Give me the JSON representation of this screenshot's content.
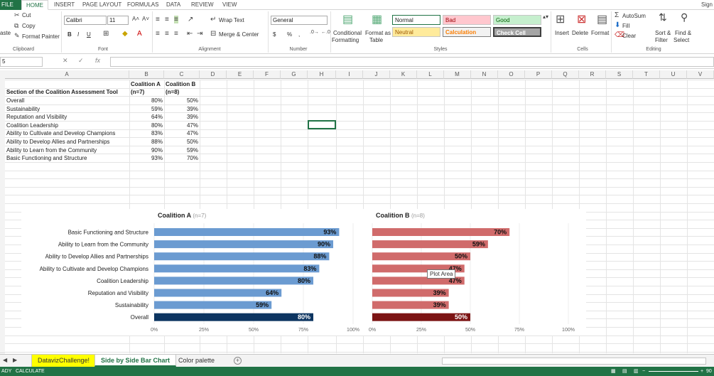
{
  "ribbon_tabs": [
    "FILE",
    "HOME",
    "INSERT",
    "PAGE LAYOUT",
    "FORMULAS",
    "DATA",
    "REVIEW",
    "VIEW"
  ],
  "sign_in": "Sign",
  "clipboard": {
    "cut": "Cut",
    "copy": "Copy",
    "paste": "aste",
    "format_painter": "Format Painter",
    "label": "Clipboard"
  },
  "font": {
    "name": "Calibri",
    "size": "11",
    "bold": "B",
    "italic": "I",
    "underline": "U",
    "label": "Font"
  },
  "alignment": {
    "wrap_text": "Wrap Text",
    "merge_center": "Merge & Center",
    "label": "Alignment"
  },
  "number": {
    "format": "General",
    "label": "Number",
    "currency": "$",
    "percent": "%",
    "comma": ","
  },
  "styles": {
    "conditional": "Conditional",
    "formatting": "Formatting",
    "format_as": "Format as",
    "table": "Table",
    "normal": "Normal",
    "bad": "Bad",
    "good": "Good",
    "neutral": "Neutral",
    "calculation": "Calculation",
    "check_cell": "Check Cell",
    "label": "Styles"
  },
  "cells": {
    "insert": "Insert",
    "delete": "Delete",
    "format": "Format",
    "label": "Cells"
  },
  "editing": {
    "autosum": "AutoSum",
    "fill": "Fill",
    "clear": "Clear",
    "sort": "Sort &",
    "filter": "Filter",
    "find": "Find &",
    "select": "Select",
    "label": "Editing"
  },
  "formula_bar": {
    "name_box": "5",
    "fx": "fx",
    "cancel": "✕",
    "enter": "✓"
  },
  "columns": [
    "A",
    "B",
    "C",
    "D",
    "E",
    "F",
    "G",
    "H",
    "I",
    "J",
    "K",
    "L",
    "M",
    "N",
    "O",
    "P",
    "Q",
    "R",
    "S",
    "T",
    "U",
    "V"
  ],
  "table": {
    "header_b1": "Coalition A",
    "header_b2": "(n=7)",
    "header_c1": "Coalition B",
    "header_c2": "(n=8)",
    "header_a": "Section of the Coalition Assessment Tool",
    "rows": [
      {
        "label": "Overall",
        "a": "80%",
        "b": "50%"
      },
      {
        "label": "Sustainability",
        "a": "59%",
        "b": "39%"
      },
      {
        "label": "Reputation and Visibility",
        "a": "64%",
        "b": "39%"
      },
      {
        "label": "Coalition Leadership",
        "a": "80%",
        "b": "47%"
      },
      {
        "label": "Ability to Cultivate and Develop Champions",
        "a": "83%",
        "b": "47%"
      },
      {
        "label": "Ability to Develop Allies and Partnerships",
        "a": "88%",
        "b": "50%"
      },
      {
        "label": "Ability to Learn from the Community",
        "a": "90%",
        "b": "59%"
      },
      {
        "label": "Basic Functioning and Structure",
        "a": "93%",
        "b": "70%"
      }
    ]
  },
  "chart_data": [
    {
      "type": "bar",
      "orientation": "horizontal",
      "title": "Coalition A",
      "subtitle": "(n=7)",
      "categories": [
        "Basic Functioning and Structure",
        "Ability to Learn from the Community",
        "Ability to Develop Allies and Partnerships",
        "Ability to Cultivate and Develop Champions",
        "Coalition Leadership",
        "Reputation and Visibility",
        "Sustainability",
        "Overall"
      ],
      "values": [
        93,
        90,
        88,
        83,
        80,
        64,
        59,
        80
      ],
      "value_labels": [
        "93%",
        "90%",
        "88%",
        "83%",
        "80%",
        "64%",
        "59%",
        "80%"
      ],
      "xlim": [
        0,
        100
      ],
      "ticks": [
        "0%",
        "25%",
        "50%",
        "75%",
        "100%"
      ],
      "bar_color": "#6b9bd1",
      "highlight_color": "#0d3561",
      "highlight_index": 7
    },
    {
      "type": "bar",
      "orientation": "horizontal",
      "title": "Coalition B",
      "subtitle": "(n=8)",
      "categories": [
        "Basic Functioning and Structure",
        "Ability to Learn from the Community",
        "Ability to Develop Allies and Partnerships",
        "Ability to Cultivate and Develop Champions",
        "Coalition Leadership",
        "Reputation and Visibility",
        "Sustainability",
        "Overall"
      ],
      "values": [
        70,
        59,
        50,
        47,
        47,
        39,
        39,
        50
      ],
      "value_labels": [
        "70%",
        "59%",
        "50%",
        "47%",
        "47%",
        "39%",
        "39%",
        "50%"
      ],
      "xlim": [
        0,
        100
      ],
      "ticks": [
        "0%",
        "25%",
        "50%",
        "75%",
        "100%"
      ],
      "bar_color": "#d06b6b",
      "highlight_color": "#7c1414",
      "highlight_index": 7
    }
  ],
  "tooltip": "Plot Area",
  "sheet_tabs": [
    "DatavizChallenge!",
    "Side by Side Bar Chart",
    "Color palette"
  ],
  "status": {
    "ready": "ADY",
    "calculate": "CALCULATE",
    "zoom": "90"
  }
}
